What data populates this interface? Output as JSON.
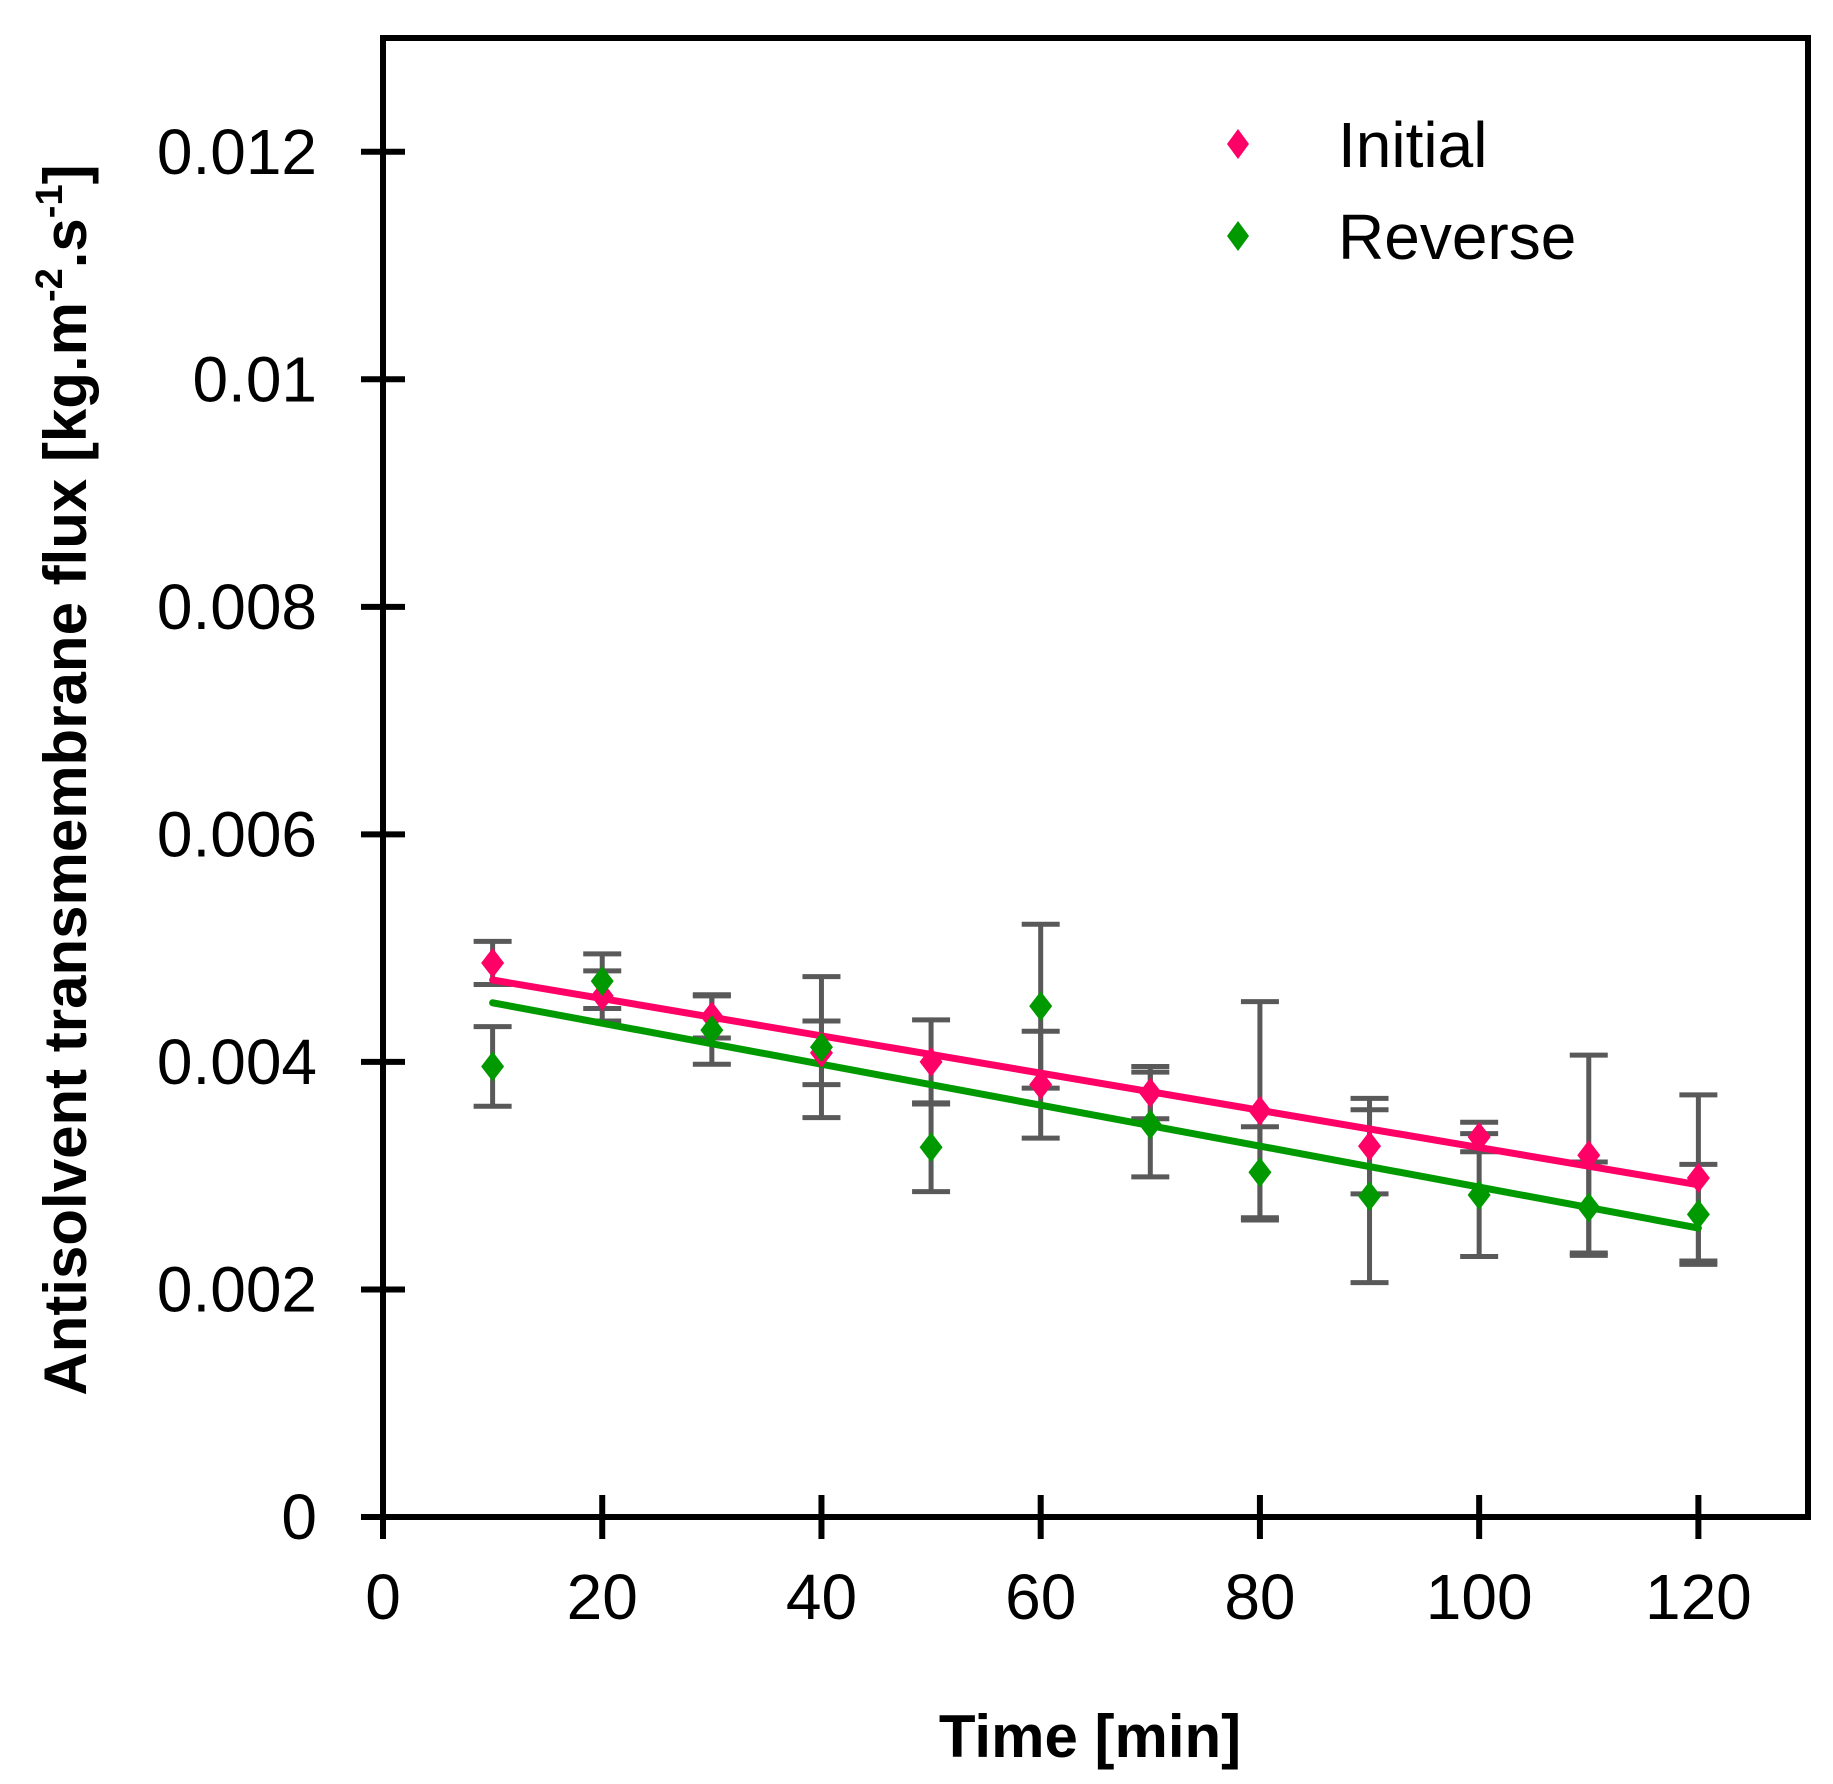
{
  "chart_data": {
    "type": "scatter",
    "title": "",
    "xlabel": "Time [min]",
    "ylabel": {
      "prefix": "Antisolvent transmembrane flux [kg.m",
      "exp1": "-2",
      "middle": ".s",
      "exp2": "-1",
      "suffix": "]"
    },
    "xlim": [
      0,
      130
    ],
    "ylim": [
      0,
      0.013
    ],
    "x_ticks": [
      {
        "value": 0,
        "label": "0"
      },
      {
        "value": 20,
        "label": "20"
      },
      {
        "value": 40,
        "label": "40"
      },
      {
        "value": 60,
        "label": "60"
      },
      {
        "value": 80,
        "label": "80"
      },
      {
        "value": 100,
        "label": "100"
      },
      {
        "value": 120,
        "label": "120"
      }
    ],
    "y_ticks": [
      {
        "value": 0,
        "label": "0"
      },
      {
        "value": 0.002,
        "label": "0.002"
      },
      {
        "value": 0.004,
        "label": "0.004"
      },
      {
        "value": 0.006,
        "label": "0.006"
      },
      {
        "value": 0.008,
        "label": "0.008"
      },
      {
        "value": 0.01,
        "label": "0.01"
      },
      {
        "value": 0.012,
        "label": "0.012"
      }
    ],
    "grid": false,
    "legend_position": "top-right",
    "error_bar_color": "#595959",
    "series": [
      {
        "name": "Initial",
        "color": "#ff0066",
        "x": [
          10,
          20,
          30,
          40,
          50,
          60,
          70,
          80,
          90,
          100,
          110,
          120
        ],
        "y": [
          0.00487,
          0.00458,
          0.0044,
          0.00408,
          0.004,
          0.0038,
          0.00373,
          0.00357,
          0.00326,
          0.00334,
          0.00318,
          0.00298
        ],
        "error": [
          0.00019,
          0.00022,
          0.00019,
          0.00028,
          0.00037,
          0.00047,
          0.00023,
          0.00096,
          0.00042,
          0.00013,
          0.00088,
          0.00073
        ],
        "trend": {
          "x": [
            10,
            120
          ],
          "y": [
            0.00472,
            0.00292
          ]
        }
      },
      {
        "name": "Reverse",
        "color": "#009900",
        "x": [
          10,
          20,
          30,
          40,
          50,
          60,
          70,
          80,
          90,
          100,
          110,
          120
        ],
        "y": [
          0.00396,
          0.00471,
          0.00428,
          0.00413,
          0.00325,
          0.00449,
          0.00345,
          0.00303,
          0.00282,
          0.00283,
          0.00272,
          0.00266
        ],
        "error": [
          0.00035,
          0.00024,
          0.0003,
          0.00062,
          0.00039,
          0.00072,
          0.00046,
          0.0004,
          0.00076,
          0.00054,
          0.0004,
          0.00044
        ],
        "trend": {
          "x": [
            10,
            120
          ],
          "y": [
            0.00452,
            0.00254
          ]
        }
      }
    ]
  }
}
